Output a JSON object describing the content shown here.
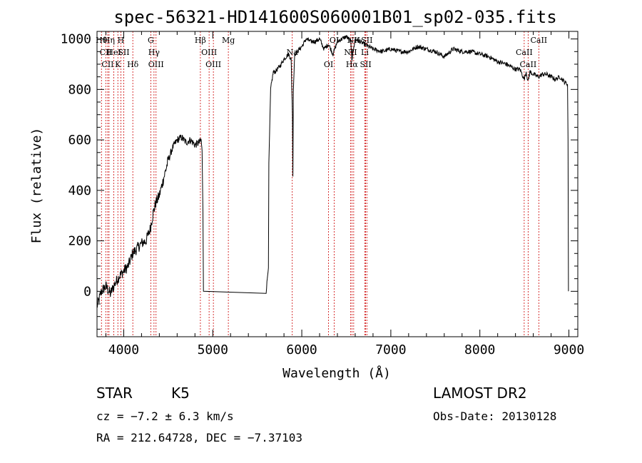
{
  "chart_data": {
    "type": "line",
    "title": "spec-56321-HD141600S060001B01_sp02-035.fits",
    "xlabel": "Wavelength (Å)",
    "ylabel": "Flux (relative)",
    "xlim": [
      3700,
      9100
    ],
    "ylim": [
      -180,
      1030
    ],
    "xticks": [
      4000,
      5000,
      6000,
      7000,
      8000,
      9000
    ],
    "yticks": [
      0,
      200,
      400,
      600,
      800,
      1000
    ],
    "series": [
      {
        "x": [
          3700,
          3750,
          3800,
          3850,
          3900,
          3950,
          4000,
          4050,
          4100,
          4150,
          4200,
          4250,
          4300,
          4330,
          4360,
          4400,
          4450,
          4500,
          4550,
          4600,
          4650,
          4700,
          4750,
          4800,
          4850,
          4870,
          4880,
          4885,
          4890,
          4895,
          5600,
          5625,
          5630,
          5650,
          5680,
          5700,
          5750,
          5800,
          5850,
          5880,
          5895,
          5900,
          5905,
          5920,
          5950,
          6000,
          6050,
          6100,
          6150,
          6200,
          6250,
          6300,
          6350,
          6400,
          6450,
          6500,
          6550,
          6563,
          6600,
          6650,
          6700,
          6750,
          6800,
          6900,
          7000,
          7100,
          7200,
          7300,
          7400,
          7500,
          7600,
          7700,
          7800,
          7900,
          8000,
          8100,
          8200,
          8300,
          8400,
          8450,
          8498,
          8520,
          8542,
          8560,
          8600,
          8662,
          8700,
          8750,
          8800,
          8850,
          8900,
          8950,
          8985,
          8990,
          8995
        ],
        "values": [
          -60,
          0,
          20,
          -10,
          30,
          60,
          80,
          100,
          150,
          170,
          190,
          200,
          250,
          310,
          350,
          380,
          450,
          520,
          570,
          600,
          610,
          590,
          600,
          580,
          590,
          600,
          550,
          440,
          320,
          0,
          0,
          100,
          500,
          800,
          870,
          870,
          890,
          920,
          940,
          920,
          700,
          450,
          800,
          940,
          950,
          970,
          1000,
          990,
          990,
          1000,
          960,
          980,
          940,
          990,
          1000,
          1010,
          990,
          920,
          1000,
          990,
          980,
          970,
          960,
          950,
          960,
          950,
          950,
          970,
          960,
          950,
          930,
          960,
          950,
          950,
          940,
          930,
          910,
          900,
          880,
          880,
          840,
          870,
          830,
          870,
          860,
          850,
          860,
          860,
          850,
          840,
          850,
          830,
          820,
          600,
          0
        ]
      }
    ],
    "line_markers": [
      {
        "wl": 3750,
        "label": "Hθ"
      },
      {
        "wl": 3798,
        "label": "CII"
      },
      {
        "wl": 3820,
        "label": "CII"
      },
      {
        "wl": 3835,
        "label": "Hη"
      },
      {
        "wl": 3889,
        "label": "HeI"
      },
      {
        "wl": 3934,
        "label": "K"
      },
      {
        "wl": 3968,
        "label": "H"
      },
      {
        "wl": 4000,
        "label": "SII"
      },
      {
        "wl": 4102,
        "label": "Hδ"
      },
      {
        "wl": 4304,
        "label": "G"
      },
      {
        "wl": 4340,
        "label": "Hγ"
      },
      {
        "wl": 4363,
        "label": "OIII"
      },
      {
        "wl": 4861,
        "label": "Hβ"
      },
      {
        "wl": 4959,
        "label": "OIII"
      },
      {
        "wl": 5007,
        "label": "OIII"
      },
      {
        "wl": 5175,
        "label": "Mg"
      },
      {
        "wl": 5893,
        "label": "Na"
      },
      {
        "wl": 6300,
        "label": "OI"
      },
      {
        "wl": 6364,
        "label": "OI"
      },
      {
        "wl": 6548,
        "label": "NII"
      },
      {
        "wl": 6563,
        "label": "Hα"
      },
      {
        "wl": 6583,
        "label": "NII"
      },
      {
        "wl": 6708,
        "label": "Li"
      },
      {
        "wl": 6717,
        "label": "SII"
      },
      {
        "wl": 6731,
        "label": "SII"
      },
      {
        "wl": 8498,
        "label": "CaII"
      },
      {
        "wl": 8542,
        "label": "CaII"
      },
      {
        "wl": 8662,
        "label": "CaII"
      }
    ]
  },
  "info": {
    "object_type": "STAR",
    "subclass": "K5",
    "survey": "LAMOST DR2",
    "cz": "cz = −7.2 ± 6.3 km/s",
    "obs_date": "Obs-Date: 20130128",
    "coords": "RA = 212.64728, DEC =  −7.37103"
  },
  "colors": {
    "spectrum": "#000000",
    "marker_lines": "#cc0000",
    "axes": "#000000"
  }
}
